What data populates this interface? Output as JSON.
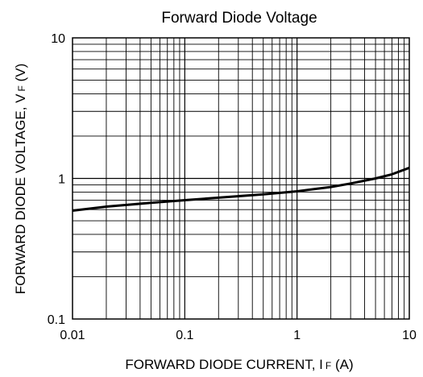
{
  "chart_data": {
    "type": "line",
    "title": "Forward Diode Voltage",
    "xlabel": {
      "main": "FORWARD DIODE CURRENT, I",
      "sub": "F",
      "unit": " (A)"
    },
    "ylabel": {
      "main": "FORWARD DIODE VOLTAGE, V",
      "sub": "F",
      "unit": " (V)"
    },
    "x_scale": "log",
    "y_scale": "log",
    "xlim": [
      0.01,
      10
    ],
    "ylim": [
      0.1,
      10
    ],
    "x_ticks": [
      {
        "value": 0.01,
        "label": "0.01"
      },
      {
        "value": 0.1,
        "label": "0.1"
      },
      {
        "value": 1,
        "label": "1"
      },
      {
        "value": 10,
        "label": "10"
      }
    ],
    "y_ticks": [
      {
        "value": 0.1,
        "label": "0.1"
      },
      {
        "value": 1,
        "label": "1"
      },
      {
        "value": 10,
        "label": "10"
      }
    ],
    "grid": true,
    "line_color": "#000000",
    "series": [
      {
        "x": [
          0.01,
          0.02,
          0.05,
          0.1,
          0.2,
          0.5,
          1,
          2,
          3,
          5,
          7,
          10
        ],
        "y": [
          0.59,
          0.63,
          0.67,
          0.7,
          0.73,
          0.77,
          0.81,
          0.87,
          0.92,
          1.0,
          1.07,
          1.19
        ]
      }
    ]
  }
}
